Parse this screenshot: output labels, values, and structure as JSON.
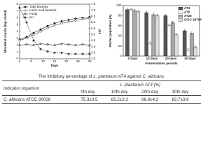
{
  "chart_data": [
    {
      "type": "line",
      "xlabel": "Days",
      "ylabel": "Microbial counts (log cfu/ml)",
      "y2label": "pH",
      "x": [
        0,
        3,
        6,
        9,
        12,
        15,
        18,
        21,
        24,
        27,
        30
      ],
      "xlim": [
        0,
        30
      ],
      "xticks": [
        0,
        5,
        10,
        15,
        20,
        25,
        30
      ],
      "ylim": [
        0,
        8
      ],
      "yticks": [
        0,
        1,
        2,
        3,
        4,
        5,
        6,
        7,
        8
      ],
      "y2lim": [
        3,
        7.5
      ],
      "y2ticks": [
        {
          "value": 3,
          "label": "3.0"
        },
        3.5,
        {
          "value": 4,
          "label": "4.0"
        },
        4.5,
        {
          "value": 5,
          "label": "5.0"
        },
        5.5,
        {
          "value": 6,
          "label": "6.0"
        },
        6.5,
        {
          "value": 7,
          "label": "7.0"
        },
        7.5
      ],
      "series": [
        {
          "name": "Total bacteria",
          "color": "#222222",
          "values": [
            2.8,
            3.2,
            3.8,
            4.3,
            4.8,
            5.2,
            5.5,
            5.7,
            5.9,
            6.0,
            6.1
          ]
        },
        {
          "name": "Lactic acid bacteria",
          "color": "#ffffff",
          "values": [
            2.7,
            3.0,
            3.5,
            4.0,
            4.5,
            4.9,
            5.2,
            5.4,
            5.6,
            5.8,
            5.9
          ]
        },
        {
          "name": "Fungi",
          "color": "#999999",
          "values": [
            2.0,
            2.1,
            2.0,
            2.2,
            2.1,
            2.0,
            2.2,
            2.1,
            2.0,
            2.1,
            2.0
          ]
        },
        {
          "name": "pH",
          "color": "#444444",
          "axis": "y2",
          "values": [
            7.2,
            6.0,
            4.5,
            3.8,
            3.6,
            3.5,
            3.5,
            3.4,
            3.4,
            3.4,
            3.4
          ]
        }
      ]
    },
    {
      "type": "bar",
      "xlabel": "Fermentation periods",
      "ylabel": "Starter population (%)",
      "categories": [
        "0 days",
        "10 days",
        "20 days",
        "30 days"
      ],
      "ylim": [
        0,
        100
      ],
      "yticks": [
        0,
        20,
        40,
        60,
        80,
        100
      ],
      "series": [
        {
          "name": "AT4",
          "color": "#555555",
          "values": [
            92,
            86,
            80,
            50
          ],
          "errors": [
            3,
            3,
            3,
            3
          ]
        },
        {
          "name": "AT6",
          "color": "#ffffff",
          "values": [
            92,
            25,
            60,
            12
          ],
          "errors": [
            3,
            3,
            3,
            3
          ]
        },
        {
          "name": "AT28",
          "color": "#aaaaaa",
          "values": [
            90,
            82,
            66,
            45
          ],
          "errors": [
            3,
            3,
            3,
            3
          ]
        },
        {
          "name": "CICC 20764",
          "color": "#dddddd",
          "values": [
            88,
            80,
            42,
            18
          ],
          "errors": [
            3,
            3,
            3,
            3
          ]
        }
      ]
    }
  ],
  "table": {
    "title": [
      "The inhibitory percentage of ",
      "L. plantarum",
      " AT4 against ",
      "C. albicans"
    ],
    "header": [
      "Indicator organism",
      "L. plantarum AT4 (%)"
    ],
    "subheader": [
      "0th day",
      "10th day",
      "20th day",
      "30th day"
    ],
    "rows": [
      [
        "C. albicans",
        "ATCC 90028",
        "75.3±3.5",
        "85.2±3.3",
        "86.8±4.2",
        "83.7±3.8"
      ]
    ]
  }
}
